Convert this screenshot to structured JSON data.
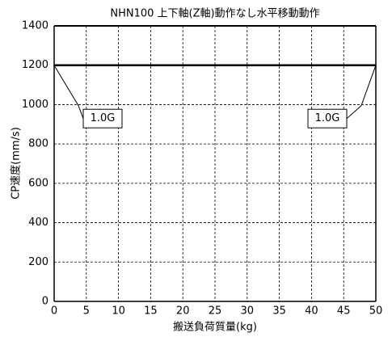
{
  "chart_data": {
    "type": "line",
    "title": "NHN100 上下軸(Z軸)動作なし水平移動動作",
    "x_label": "搬送負荷質量(kg)",
    "y_label": "CP速度(mm/s)",
    "x": [
      0,
      50
    ],
    "series": [
      {
        "color": "#000000",
        "values": [
          1200,
          1200
        ]
      }
    ],
    "xlim": [
      0,
      50
    ],
    "xticks": [
      0,
      5,
      10,
      15,
      20,
      25,
      30,
      35,
      40,
      45,
      50
    ],
    "ylim": [
      0,
      1400
    ],
    "yticks": [
      0,
      200,
      400,
      600,
      800,
      1000,
      1200,
      1400
    ],
    "grid": true,
    "annotations": [
      {
        "text": "1.0G",
        "x": 0,
        "y": 1200
      },
      {
        "text": "1.0G",
        "x": 50,
        "y": 1200
      }
    ]
  }
}
